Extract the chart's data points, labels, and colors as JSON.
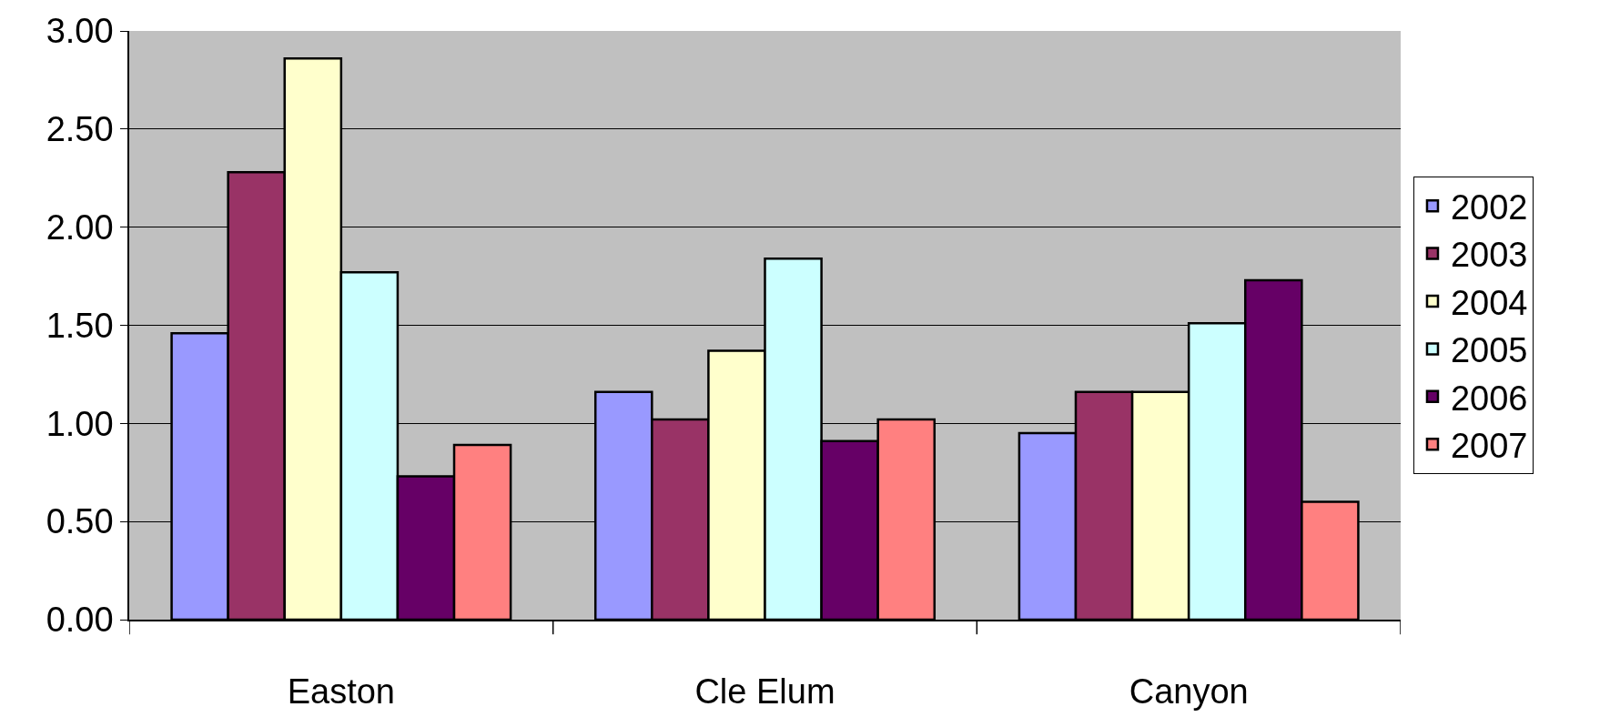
{
  "chart_data": {
    "type": "bar",
    "categories": [
      "Easton",
      "Cle Elum",
      "Canyon"
    ],
    "series": [
      {
        "name": "2002",
        "color": "#9999ff",
        "values": [
          1.46,
          1.16,
          0.95
        ]
      },
      {
        "name": "2003",
        "color": "#993366",
        "values": [
          2.28,
          1.02,
          1.16
        ]
      },
      {
        "name": "2004",
        "color": "#ffffcc",
        "values": [
          2.86,
          1.37,
          1.16
        ]
      },
      {
        "name": "2005",
        "color": "#ccffff",
        "values": [
          1.77,
          1.84,
          1.51
        ]
      },
      {
        "name": "2006",
        "color": "#660066",
        "values": [
          0.73,
          0.91,
          1.73
        ]
      },
      {
        "name": "2007",
        "color": "#ff8080",
        "values": [
          0.89,
          1.02,
          0.6
        ]
      }
    ],
    "ylim": [
      0,
      3
    ],
    "yticks": [
      {
        "value": 0,
        "label": "0.00"
      },
      {
        "value": 0.5,
        "label": "0.50"
      },
      {
        "value": 1,
        "label": "1.00"
      },
      {
        "value": 1.5,
        "label": "1.50"
      },
      {
        "value": 2,
        "label": "2.00"
      },
      {
        "value": 2.5,
        "label": "2.50"
      },
      {
        "value": 3,
        "label": "3.00"
      }
    ],
    "grid": "y",
    "legend": "right"
  }
}
